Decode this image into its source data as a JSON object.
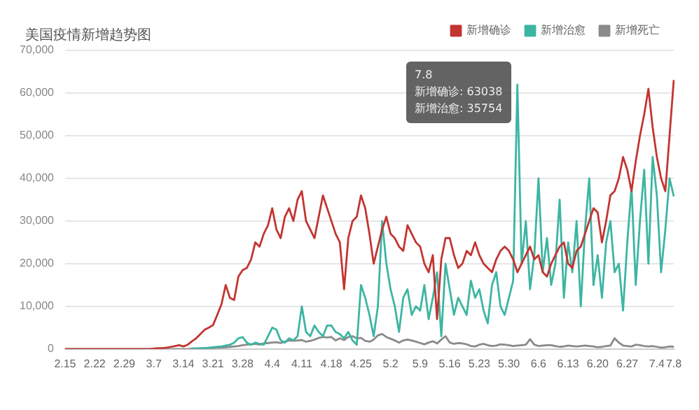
{
  "chart_data": {
    "type": "line",
    "title": "美国疫情新增趋势图",
    "annotations": [
      "7.8",
      "新增确诊: 63038",
      "新增治愈: 35754"
    ],
    "categories": [
      "2.15",
      null,
      null,
      null,
      null,
      null,
      null,
      "2.22",
      null,
      null,
      null,
      null,
      null,
      null,
      "2.29",
      null,
      null,
      null,
      null,
      null,
      null,
      "3.7",
      null,
      null,
      null,
      null,
      null,
      null,
      "3.14",
      null,
      null,
      null,
      null,
      null,
      null,
      "3.21",
      null,
      null,
      null,
      null,
      null,
      null,
      "3.28",
      null,
      null,
      null,
      null,
      null,
      null,
      "4.4",
      null,
      null,
      null,
      null,
      null,
      null,
      "4.11",
      null,
      null,
      null,
      null,
      null,
      null,
      "4.18",
      null,
      null,
      null,
      null,
      null,
      null,
      "4.25",
      null,
      null,
      null,
      null,
      null,
      null,
      "5.2",
      null,
      null,
      null,
      null,
      null,
      null,
      "5.9",
      null,
      null,
      null,
      null,
      null,
      null,
      "5.16",
      null,
      null,
      null,
      null,
      null,
      null,
      "5.23",
      null,
      null,
      null,
      null,
      null,
      null,
      "5.30",
      null,
      null,
      null,
      null,
      null,
      null,
      "6.6",
      null,
      null,
      null,
      null,
      null,
      null,
      "6.13",
      null,
      null,
      null,
      null,
      null,
      null,
      "6.20",
      null,
      null,
      null,
      null,
      null,
      null,
      "6.27",
      null,
      null,
      null,
      null,
      null,
      null,
      "7.4",
      null,
      null,
      null,
      "7.8"
    ],
    "series": [
      {
        "name": "新增确诊",
        "color": "#c23531",
        "values": [
          0,
          0,
          0,
          0,
          0,
          0,
          0,
          0,
          0,
          0,
          0,
          0,
          0,
          0,
          0,
          0,
          0,
          0,
          0,
          0,
          0,
          100,
          200,
          200,
          300,
          500,
          700,
          900,
          600,
          1000,
          1800,
          2500,
          3500,
          4500,
          5000,
          5600,
          8000,
          10500,
          15000,
          12000,
          11500,
          17000,
          18500,
          19000,
          21000,
          25000,
          24000,
          27000,
          29000,
          33000,
          28000,
          26000,
          31000,
          33000,
          30000,
          35000,
          37000,
          30000,
          28000,
          26000,
          31000,
          36000,
          33000,
          30000,
          27000,
          25000,
          14000,
          26000,
          30000,
          31000,
          36000,
          33000,
          27000,
          20000,
          24000,
          28000,
          31000,
          27000,
          26000,
          24000,
          23000,
          29000,
          27000,
          25000,
          24000,
          20000,
          18000,
          22000,
          7000,
          21000,
          26000,
          26000,
          22000,
          19000,
          20000,
          23000,
          22000,
          25000,
          22000,
          20000,
          19000,
          18000,
          21000,
          23000,
          24000,
          23000,
          21000,
          18000,
          20000,
          22000,
          24000,
          21000,
          22000,
          18000,
          17000,
          20000,
          22000,
          24000,
          25000,
          20000,
          19000,
          23000,
          24000,
          27000,
          30000,
          33000,
          32000,
          25000,
          30000,
          36000,
          37000,
          40000,
          45000,
          42000,
          37000,
          44000,
          50000,
          55000,
          61000,
          52000,
          45000,
          40000,
          37000,
          50000,
          63038
        ]
      },
      {
        "name": "新增治愈",
        "color": "#3db5a2",
        "values": [
          null,
          null,
          null,
          null,
          null,
          null,
          null,
          null,
          null,
          null,
          null,
          null,
          null,
          null,
          null,
          null,
          null,
          null,
          null,
          null,
          null,
          null,
          null,
          null,
          null,
          null,
          null,
          null,
          null,
          null,
          100,
          100,
          200,
          200,
          300,
          400,
          500,
          600,
          800,
          1000,
          1500,
          2500,
          2800,
          1500,
          1000,
          1500,
          1200,
          1000,
          3000,
          5000,
          4500,
          2000,
          1500,
          2500,
          2000,
          3000,
          10000,
          4000,
          3000,
          5500,
          4000,
          3000,
          5500,
          5500,
          4000,
          3500,
          2500,
          4000,
          2000,
          1000,
          15000,
          12000,
          8000,
          3000,
          10000,
          30000,
          20000,
          14000,
          10000,
          4000,
          12000,
          14000,
          8000,
          10000,
          9000,
          15000,
          7000,
          12000,
          18000,
          3000,
          20000,
          14000,
          8000,
          12000,
          10000,
          8000,
          16000,
          12000,
          14000,
          9000,
          6000,
          15000,
          18000,
          10000,
          8000,
          12000,
          16000,
          62000,
          20000,
          30000,
          14000,
          22000,
          40000,
          18000,
          26000,
          15000,
          20000,
          35000,
          12000,
          25000,
          18000,
          30000,
          10000,
          28000,
          40000,
          15000,
          22000,
          12000,
          25000,
          30000,
          18000,
          20000,
          9000,
          25000,
          38000,
          15000,
          30000,
          42000,
          20000,
          45000,
          36000,
          18000,
          28000,
          40000,
          35754
        ]
      },
      {
        "name": "新增死亡",
        "color": "#8a8a8a",
        "values": [
          0,
          0,
          0,
          0,
          0,
          0,
          0,
          0,
          0,
          0,
          0,
          0,
          0,
          0,
          0,
          0,
          0,
          0,
          0,
          0,
          0,
          0,
          0,
          0,
          0,
          0,
          0,
          0,
          0,
          0,
          100,
          100,
          100,
          200,
          200,
          200,
          300,
          300,
          400,
          500,
          600,
          700,
          900,
          1000,
          1100,
          1200,
          1000,
          1300,
          1400,
          1500,
          1600,
          1400,
          1700,
          2000,
          1900,
          2000,
          2100,
          1700,
          1900,
          2200,
          2600,
          2800,
          2700,
          2800,
          2000,
          2500,
          2100,
          2800,
          3000,
          2500,
          2600,
          1900,
          1700,
          2200,
          3200,
          3500,
          2800,
          2400,
          2000,
          1500,
          2000,
          2200,
          2000,
          1700,
          1400,
          1100,
          1500,
          1800,
          1300,
          2200,
          3000,
          1500,
          1200,
          1400,
          1300,
          1100,
          700,
          600,
          1000,
          1200,
          900,
          700,
          800,
          1100,
          1000,
          900,
          700,
          800,
          900,
          1000,
          2300,
          1000,
          700,
          800,
          900,
          900,
          700,
          500,
          600,
          800,
          700,
          600,
          700,
          800,
          700,
          600,
          400,
          500,
          700,
          800,
          2500,
          1500,
          800,
          700,
          600,
          1000,
          900,
          700,
          600,
          700,
          500,
          300,
          400,
          600,
          500
        ]
      }
    ],
    "ylim": [
      0,
      70000
    ],
    "yticks": [
      0,
      {
        "value": 10000,
        "label": "10,000"
      },
      {
        "value": 20000,
        "label": "20,000"
      },
      {
        "value": 30000,
        "label": "30,000"
      },
      {
        "value": 40000,
        "label": "40,000"
      },
      {
        "value": 50000,
        "label": "50,000"
      },
      {
        "value": 60000,
        "label": "60,000"
      },
      {
        "value": 70000,
        "label": "70,000"
      }
    ],
    "grid": "y",
    "legend": "top right"
  }
}
